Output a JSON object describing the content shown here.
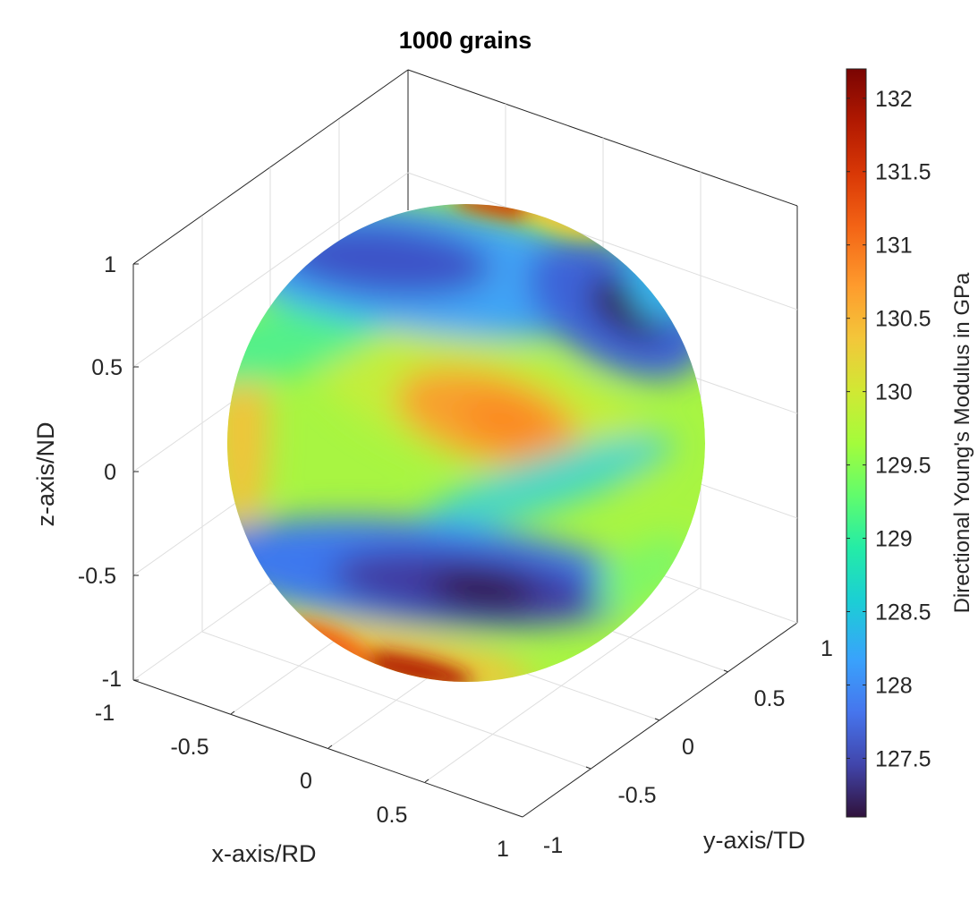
{
  "chart_data": {
    "type": "heatmap",
    "plot_type": "3d-sphere-surface",
    "title": "1000 grains",
    "xlabel": "x-axis/RD",
    "ylabel": "y-axis/TD",
    "zlabel": "z-axis/ND",
    "xlim": [
      -1,
      1
    ],
    "ylim": [
      -1,
      1
    ],
    "zlim": [
      -1,
      1
    ],
    "x_ticks": [
      "-1",
      "-0.5",
      "0",
      "0.5",
      "1"
    ],
    "y_ticks": [
      "-1",
      "-0.5",
      "0",
      "0.5",
      "1"
    ],
    "z_ticks": [
      "-1",
      "-0.5",
      "0",
      "0.5",
      "1"
    ],
    "grid": true,
    "colorbar": {
      "label": "Directional Young's Modulus in GPa",
      "range": [
        127.1,
        132.2
      ],
      "ticks": [
        "127.5",
        "128",
        "128.5",
        "129",
        "129.5",
        "130",
        "130.5",
        "131",
        "131.5",
        "132"
      ],
      "colormap": "turbo",
      "placement": "right"
    },
    "features": [
      {
        "name": "max",
        "region": "center-front",
        "value": 130.9
      },
      {
        "name": "max",
        "region": "top-edge",
        "value": 132.0
      },
      {
        "name": "max",
        "region": "bottom-edge",
        "value": 132.2
      },
      {
        "name": "min",
        "region": "upper-right",
        "value": 127.1
      },
      {
        "name": "min",
        "region": "upper-left",
        "value": 127.4
      },
      {
        "name": "min",
        "region": "lower-center",
        "value": 127.1
      }
    ]
  }
}
